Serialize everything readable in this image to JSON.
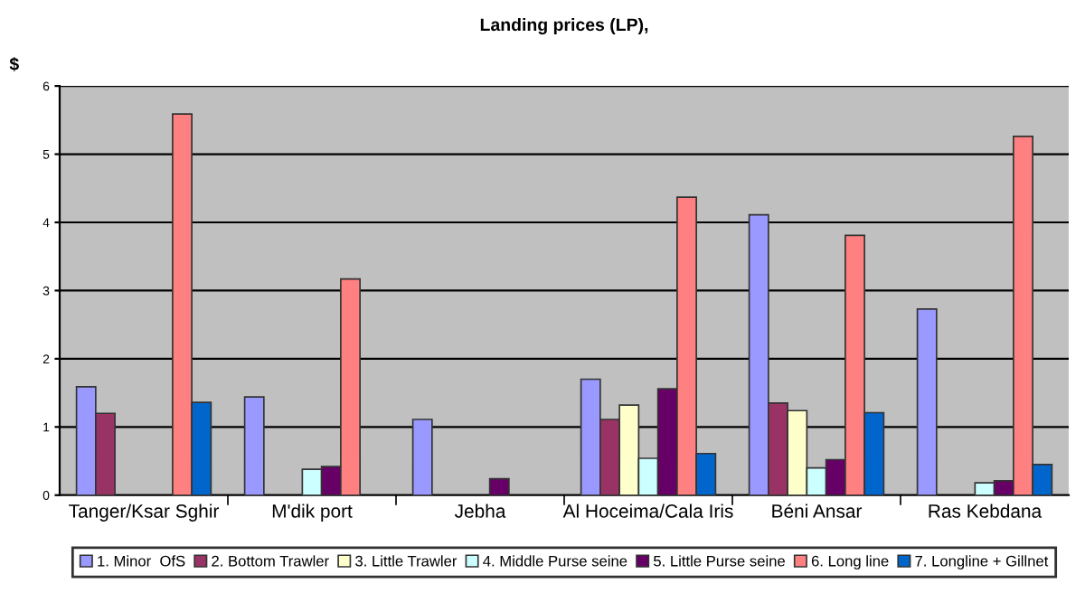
{
  "chart_data": {
    "type": "bar",
    "title": "Landing prices (LP),",
    "ylabel": "$",
    "categories": [
      "Tanger/Ksar Sghir",
      "M'dik port",
      "Jebha",
      "Al Hoceima/Cala Iris",
      "Béni Ansar",
      "Ras Kebdana"
    ],
    "series": [
      {
        "name": "1. Minor  OfS",
        "color": "#9999ff",
        "values": [
          1.59,
          1.44,
          1.11,
          1.7,
          4.11,
          2.73
        ]
      },
      {
        "name": "2. Bottom Trawler",
        "color": "#993366",
        "values": [
          1.2,
          null,
          null,
          1.11,
          1.35,
          null
        ]
      },
      {
        "name": "3. Little Trawler",
        "color": "#ffffcc",
        "values": [
          null,
          null,
          null,
          1.32,
          1.24,
          null
        ]
      },
      {
        "name": "4. Middle Purse seine",
        "color": "#ccffff",
        "values": [
          null,
          0.38,
          null,
          0.54,
          0.4,
          0.18
        ]
      },
      {
        "name": "5. Little Purse seine",
        "color": "#660066",
        "values": [
          null,
          0.42,
          0.24,
          1.56,
          0.52,
          0.21
        ]
      },
      {
        "name": "6. Long line",
        "color": "#ff8080",
        "values": [
          5.59,
          3.17,
          null,
          4.37,
          3.81,
          5.26
        ]
      },
      {
        "name": "7. Longline + Gillnet",
        "color": "#0066cc",
        "values": [
          1.36,
          null,
          null,
          0.61,
          1.21,
          0.45
        ]
      }
    ],
    "ylim": [
      0,
      6
    ],
    "yticks": [
      0,
      1,
      2,
      3,
      4,
      5,
      6
    ],
    "grid": "y",
    "legend": "bottom"
  }
}
